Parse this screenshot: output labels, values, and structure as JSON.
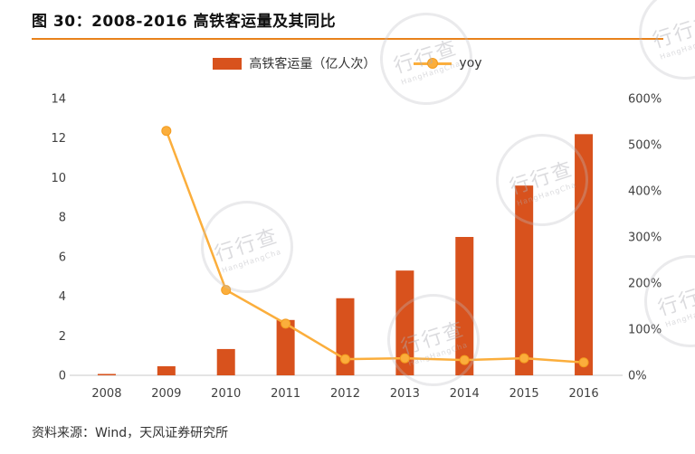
{
  "page": {
    "title": "图 30：2008-2016 高铁客运量及其同比",
    "source": "资料来源：Wind，天风证券研究所",
    "watermark": "行行查",
    "watermark_sub": "HangHangCha"
  },
  "chart_data": {
    "type": "bar",
    "combo": "bar+line",
    "title": "2008-2016 高铁客运量及其同比",
    "categories": [
      "2008",
      "2009",
      "2010",
      "2011",
      "2012",
      "2013",
      "2014",
      "2015",
      "2016"
    ],
    "series": [
      {
        "name": "高铁客运量（亿人次）",
        "type": "bar",
        "axis": "left",
        "color": "#D8521D",
        "values": [
          0.07,
          0.46,
          1.33,
          2.8,
          3.9,
          5.3,
          7.0,
          9.6,
          12.2
        ]
      },
      {
        "name": "yoy",
        "type": "line",
        "axis": "right",
        "color": "#FBAE3C",
        "marker_stroke": "#F39C1F",
        "values": [
          null,
          530,
          185,
          112,
          35,
          37,
          33,
          37,
          28
        ]
      }
    ],
    "left_axis": {
      "min": 0,
      "max": 14,
      "step": 2,
      "ticks": [
        "0",
        "2",
        "4",
        "6",
        "8",
        "10",
        "12",
        "14"
      ]
    },
    "right_axis": {
      "min": 0,
      "max": 600,
      "step": 100,
      "unit": "%",
      "ticks": [
        "0%",
        "100%",
        "200%",
        "300%",
        "400%",
        "500%",
        "600%"
      ]
    },
    "legend_position": "top",
    "grid": false,
    "xlabel": "",
    "ylabel_left": "亿人次",
    "ylabel_right": "%"
  },
  "colors": {
    "accent_divider": "#E8821C",
    "bar": "#D8521D",
    "line": "#FBAE3C",
    "axis_line": "#C9C9C9"
  }
}
